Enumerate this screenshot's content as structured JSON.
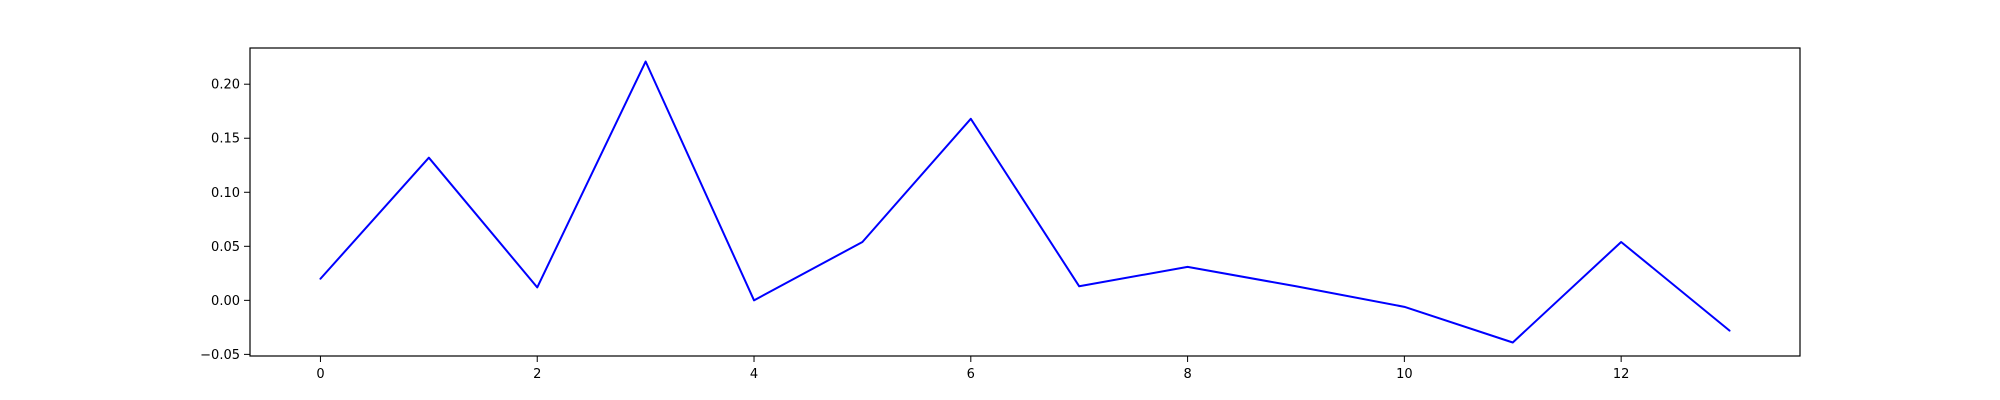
{
  "chart_data": {
    "type": "line",
    "title": "",
    "xlabel": "",
    "ylabel": "",
    "x": [
      0,
      1,
      2,
      3,
      4,
      5,
      6,
      7,
      8,
      9,
      10,
      11,
      12,
      13
    ],
    "series": [
      {
        "values": [
          0.02,
          0.132,
          0.012,
          0.221,
          0.0,
          0.054,
          0.168,
          0.013,
          0.031,
          0.013,
          -0.006,
          -0.039,
          0.054,
          -0.028
        ],
        "color": "#0000ff"
      }
    ],
    "xlim": [
      -0.65,
      13.65
    ],
    "ylim": [
      -0.0515,
      0.2335
    ],
    "xticks": [
      0,
      2,
      4,
      6,
      8,
      10,
      12
    ],
    "xtick_labels": [
      "0",
      "2",
      "4",
      "6",
      "8",
      "10",
      "12"
    ],
    "yticks": [
      -0.05,
      0.0,
      0.05,
      0.1,
      0.15,
      0.2
    ],
    "ytick_labels": [
      "−0.05",
      "0.00",
      "0.05",
      "0.10",
      "0.15",
      "0.20"
    ],
    "grid": false,
    "legend": false
  }
}
